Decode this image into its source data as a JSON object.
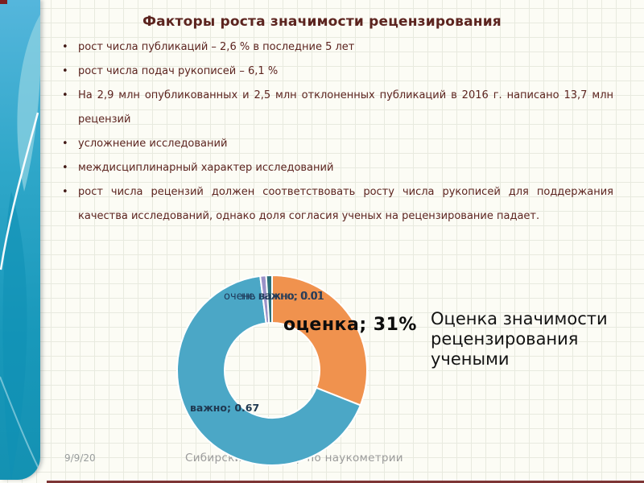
{
  "slide": {
    "title": "Факторы роста значимости рецензирования",
    "bullets": [
      "рост числа публикаций – 2,6 % в последние 5 лет",
      "рост числа подач рукописей – 6,1 %",
      "На 2,9 млн опубликованных и 2,5 млн отклоненных публикаций в 2016 г. написано 13,7 млн рецензий",
      "усложнение исследований",
      "междисциплинарный характер исследований",
      "рост числа рецензий должен соответствовать росту числа рукописей для поддержания качества исследований, однако доля согласия ученых на рецензирование падает."
    ],
    "chart_title_lines": [
      "Оценка значимости",
      "рецензирования",
      "учеными"
    ],
    "footer": {
      "date": "9/9/20",
      "venue": "Сибирский семинар по наукометрии"
    }
  },
  "chart_data": {
    "type": "pie",
    "subtype": "donut",
    "title": "Оценка значимости рецензирования учеными",
    "inner_radius_ratio": 0.5,
    "start_angle_deg": 0,
    "direction": "clockwise",
    "slices": [
      {
        "id": "ocenka",
        "label": "оценка",
        "display": "оценка; 31%",
        "value": 0.31,
        "color": "#F0924E"
      },
      {
        "id": "vazhno",
        "label": "важно",
        "display": "важно; 0.67",
        "value": 0.67,
        "color": "#4BA7C6"
      },
      {
        "id": "ne-vazhno",
        "label": "не важно",
        "display": "не важно; 0.01",
        "value": 0.01,
        "color": "#9A92C8"
      },
      {
        "id": "ochen-vazhno",
        "label": "очень важно",
        "display": "очень важно; 0.01",
        "value": 0.01,
        "color": "#2B6F79"
      }
    ]
  },
  "theme": {
    "sidebar_teal": "#1898BA",
    "sidebar_light_blue": "#55B6DC",
    "accent_dark_red": "#7D3535",
    "title_text_maroon": "#5C241F",
    "background": "#FCFCF5",
    "grid_line": "#E8EADF",
    "footer_gray": "#9B9B9B"
  }
}
